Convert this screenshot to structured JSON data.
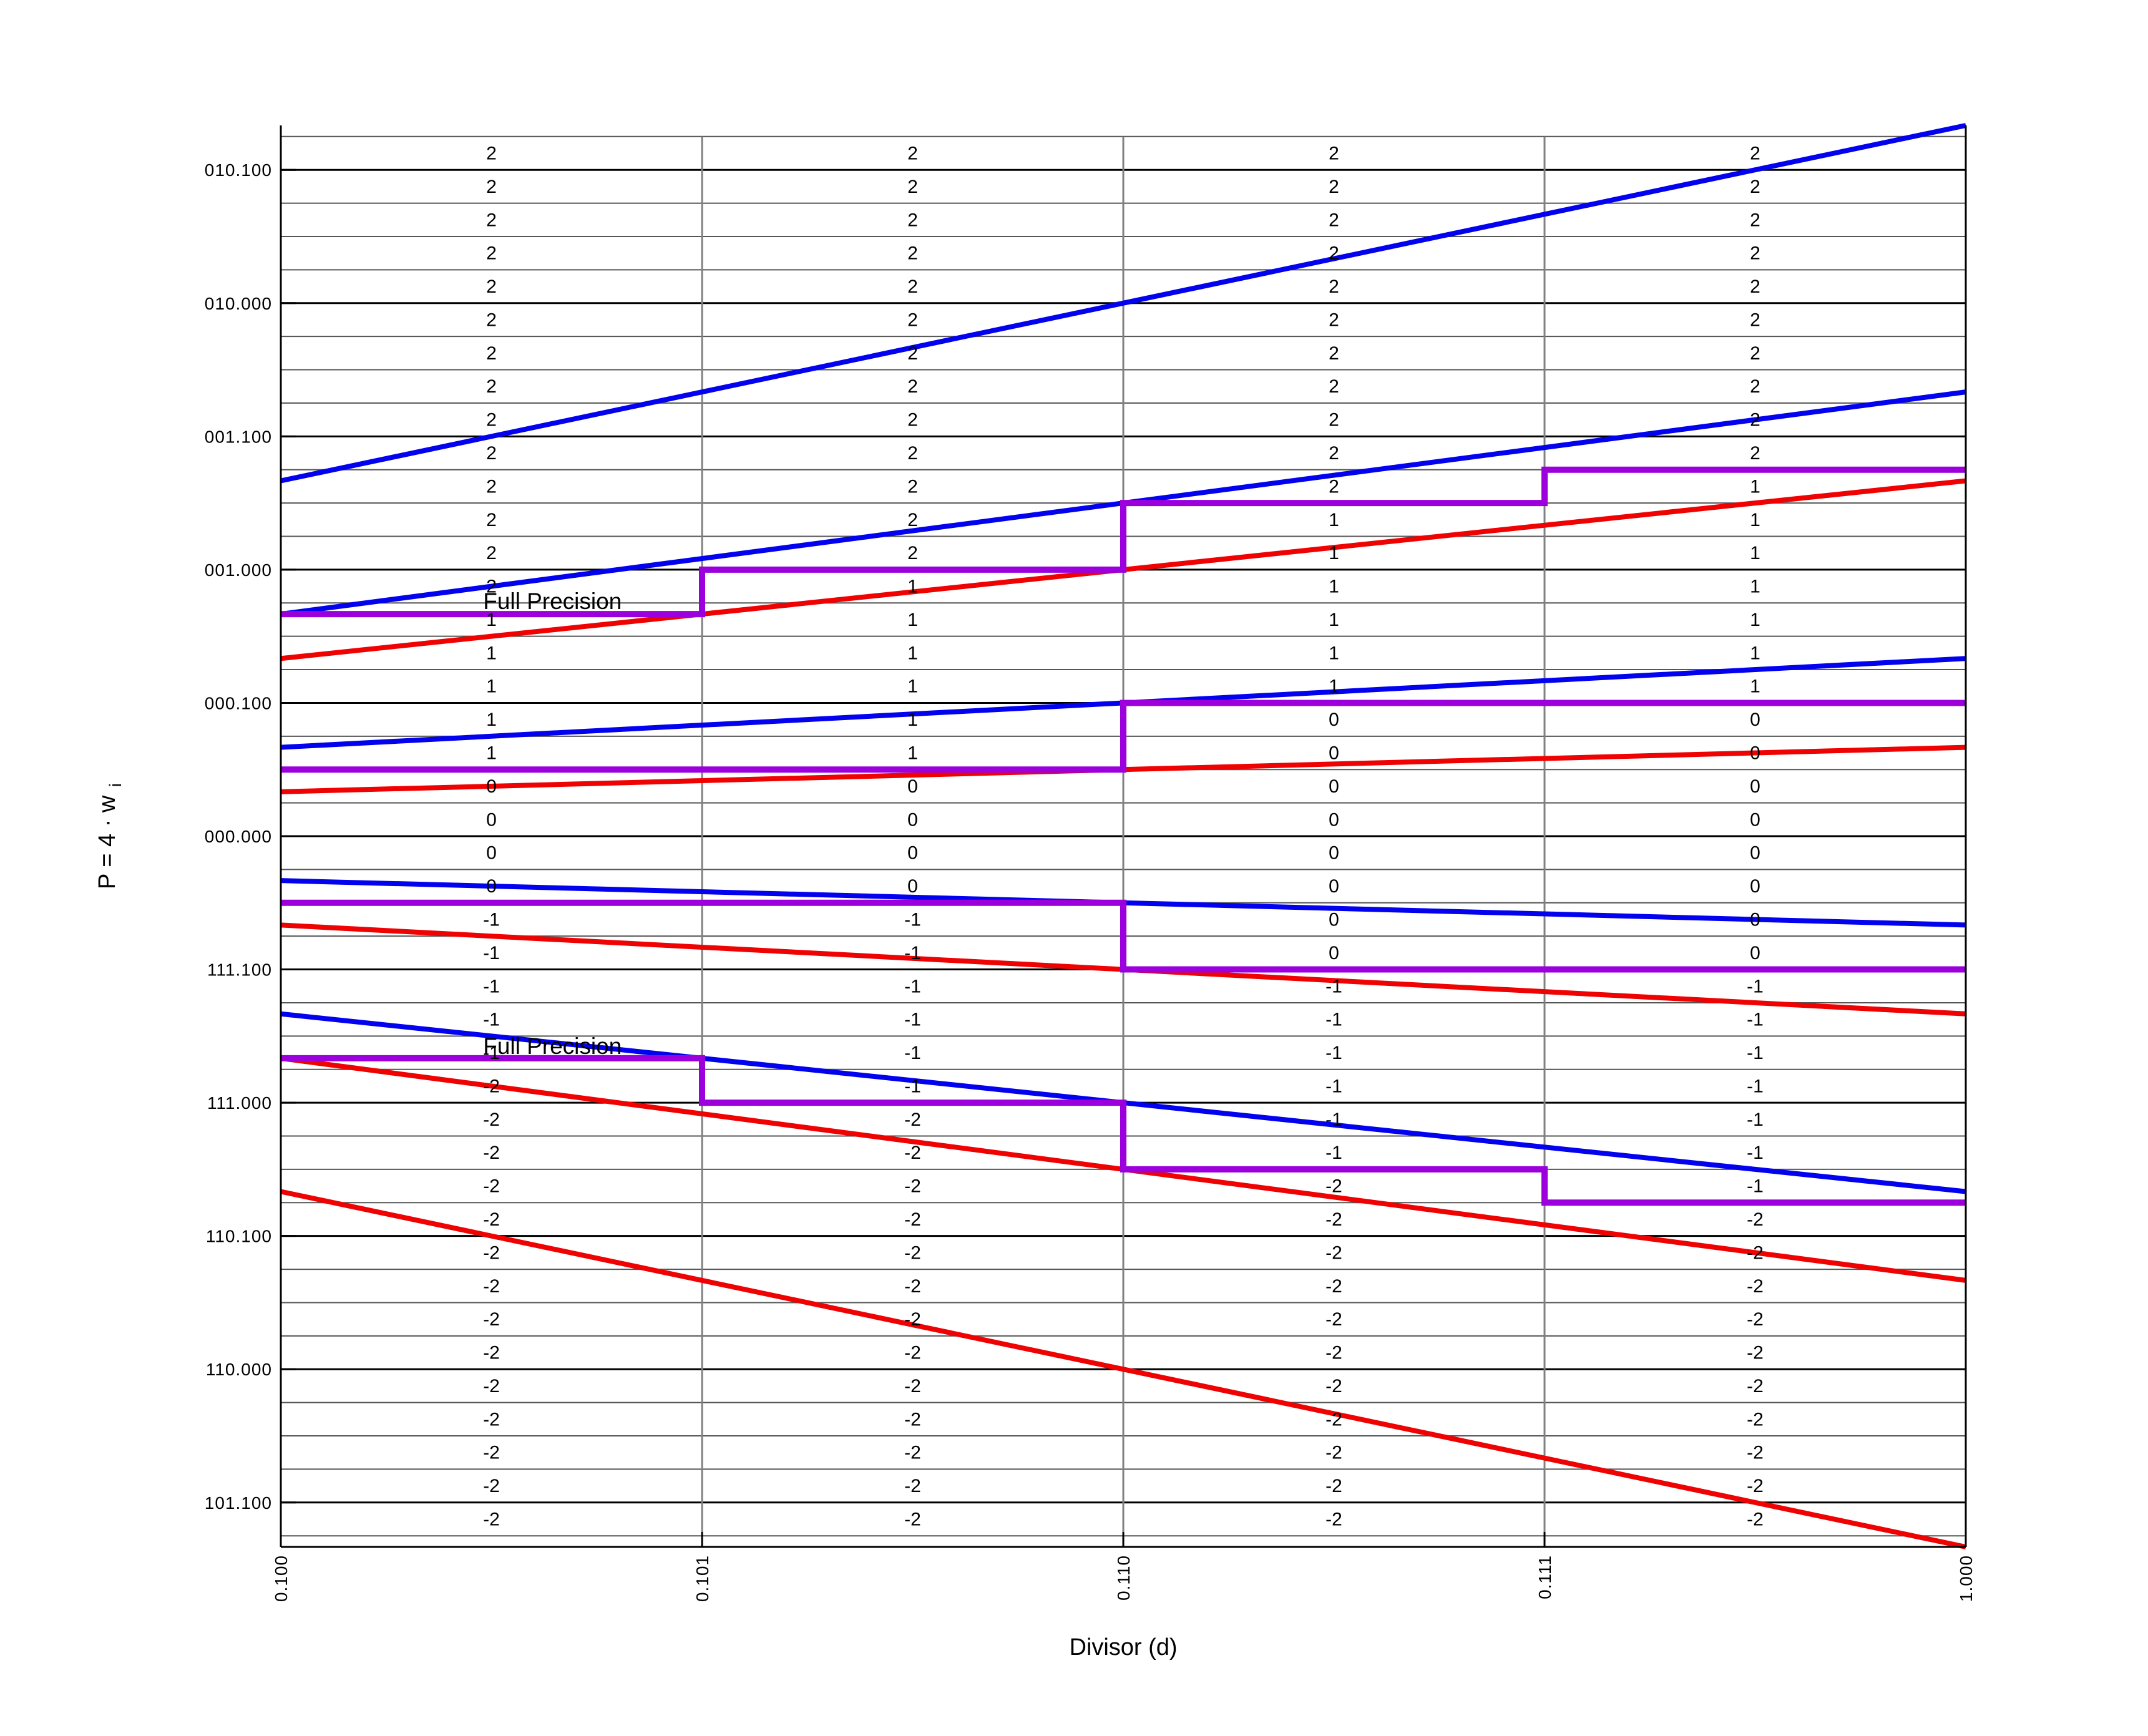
{
  "axes": {
    "xlabel": "Divisor (d)",
    "ylabel": {
      "main": "P = 4 · w",
      "sub": "i"
    },
    "x_ticks": [
      {
        "value": 0.5,
        "label": "0.100"
      },
      {
        "value": 0.625,
        "label": "0.101"
      },
      {
        "value": 0.75,
        "label": "0.110"
      },
      {
        "value": 0.875,
        "label": "0.111"
      },
      {
        "value": 1.0,
        "label": "1.000"
      }
    ],
    "y_ticks": [
      {
        "value": 2.5,
        "label": "010.100"
      },
      {
        "value": 2.0,
        "label": "010.000"
      },
      {
        "value": 1.5,
        "label": "001.100"
      },
      {
        "value": 1.0,
        "label": "001.000"
      },
      {
        "value": 0.5,
        "label": "000.100"
      },
      {
        "value": 0.0,
        "label": "000.000"
      },
      {
        "value": -0.5,
        "label": "111.100"
      },
      {
        "value": -1.0,
        "label": "111.000"
      },
      {
        "value": -1.5,
        "label": "110.100"
      },
      {
        "value": -2.0,
        "label": "110.000"
      },
      {
        "value": -2.5,
        "label": "101.100"
      }
    ],
    "vertical_gridlines": [
      0.625,
      0.75,
      0.875
    ]
  },
  "chart_data": {
    "type": "line",
    "title": "",
    "description": "Radix-4 SRT division P-D quotient digit selection diagram: P = 4·w(i) versus divisor d, with digit selection bounds (k±2/3)·d, staircase selection thresholds, and the chosen quotient digit in each table cell",
    "xlabel": "Divisor (d)",
    "ylabel": "P = 4 · wi",
    "x_range": [
      0.5,
      1.0
    ],
    "y_range": [
      -2.6667,
      2.6667
    ],
    "grid": {
      "minor_step": 0.125,
      "minor_max": 2.625
    },
    "selection_bounds": [
      {
        "name": "upper-bound-digit+2 (8/3·d)",
        "group": "upper",
        "slope": 2.6667
      },
      {
        "name": "upper-bound-digit+1 (5/3·d)",
        "group": "upper",
        "slope": 1.6667
      },
      {
        "name": "upper-bound-digit-0 (2/3·d)",
        "group": "upper",
        "slope": 0.6667
      },
      {
        "name": "upper-bound-digit-1 (-1/3·d)",
        "group": "upper",
        "slope": -0.3333
      },
      {
        "name": "upper-bound-digit-2 (-4/3·d)",
        "group": "upper",
        "slope": -1.3333
      },
      {
        "name": "lower-bound-digit+2 (4/3·d)",
        "group": "lower",
        "slope": 1.3333
      },
      {
        "name": "lower-bound-digit+1 (1/3·d)",
        "group": "lower",
        "slope": 0.3333
      },
      {
        "name": "lower-bound-digit-0 (-2/3·d)",
        "group": "lower",
        "slope": -0.6667
      },
      {
        "name": "lower-bound-digit-1 (-5/3·d)",
        "group": "lower",
        "slope": -1.6667
      },
      {
        "name": "lower-bound-digit-2 (-8/3·d)",
        "group": "lower",
        "slope": -2.6667
      }
    ],
    "staircases": [
      {
        "name": "threshold-2/1",
        "d_edges": [
          0.5,
          0.625,
          0.75,
          0.875,
          1.0
        ],
        "levels": [
          0.8333,
          1.0,
          1.25,
          1.375
        ]
      },
      {
        "name": "threshold-1/0",
        "d_edges": [
          0.5,
          0.625,
          0.75,
          0.875,
          1.0
        ],
        "levels": [
          0.25,
          0.25,
          0.5,
          0.5
        ]
      },
      {
        "name": "threshold-0/-1",
        "d_edges": [
          0.5,
          0.625,
          0.75,
          0.875,
          1.0
        ],
        "levels": [
          -0.25,
          -0.25,
          -0.5,
          -0.5
        ]
      },
      {
        "name": "threshold--1/-2",
        "d_edges": [
          0.5,
          0.625,
          0.75,
          0.875,
          1.0
        ],
        "levels": [
          -0.8333,
          -1.0,
          -1.25,
          -1.375
        ]
      }
    ],
    "digit_grid": {
      "row_top_start": 2.625,
      "row_step": 0.125,
      "column_centers_d": [
        0.5625,
        0.6875,
        0.8125,
        0.9375
      ],
      "columns": [
        [
          2,
          2,
          2,
          2,
          2,
          2,
          2,
          2,
          2,
          2,
          2,
          2,
          2,
          2,
          1,
          1,
          1,
          1,
          1,
          0,
          0,
          0,
          0,
          -1,
          -1,
          -1,
          -1,
          -1,
          -2,
          -2,
          -2,
          -2,
          -2,
          -2,
          -2,
          -2,
          -2,
          -2,
          -2,
          -2,
          -2,
          -2
        ],
        [
          2,
          2,
          2,
          2,
          2,
          2,
          2,
          2,
          2,
          2,
          2,
          2,
          2,
          1,
          1,
          1,
          1,
          1,
          1,
          0,
          0,
          0,
          0,
          -1,
          -1,
          -1,
          -1,
          -1,
          -1,
          -2,
          -2,
          -2,
          -2,
          -2,
          -2,
          -2,
          -2,
          -2,
          -2,
          -2,
          -2,
          -2
        ],
        [
          2,
          2,
          2,
          2,
          2,
          2,
          2,
          2,
          2,
          2,
          2,
          1,
          1,
          1,
          1,
          1,
          1,
          0,
          0,
          0,
          0,
          0,
          0,
          0,
          0,
          -1,
          -1,
          -1,
          -1,
          -1,
          -1,
          -2,
          -2,
          -2,
          -2,
          -2,
          -2,
          -2,
          -2,
          -2,
          -2,
          -2
        ],
        [
          2,
          2,
          2,
          2,
          2,
          2,
          2,
          2,
          2,
          2,
          1,
          1,
          1,
          1,
          1,
          1,
          1,
          0,
          0,
          0,
          0,
          0,
          0,
          0,
          0,
          -1,
          -1,
          -1,
          -1,
          -1,
          -1,
          -1,
          -2,
          -2,
          -2,
          -2,
          -2,
          -2,
          -2,
          -2,
          -2,
          -2
        ]
      ]
    },
    "annotations": [
      {
        "text": "Full Precision",
        "d": 0.5806,
        "w": 0.8525
      },
      {
        "text": "Full Precision",
        "d": 0.5806,
        "w": -0.8173
      }
    ]
  },
  "colors": {
    "upper_bound": "#0202ee",
    "lower_bound": "#ee0202",
    "staircase": "#9b00dc",
    "grid_minor": "#555555",
    "grid_major": "#000000",
    "grid_vertical": "#808080",
    "spine": "#000000",
    "text": "#000000",
    "background": "#ffffff"
  }
}
